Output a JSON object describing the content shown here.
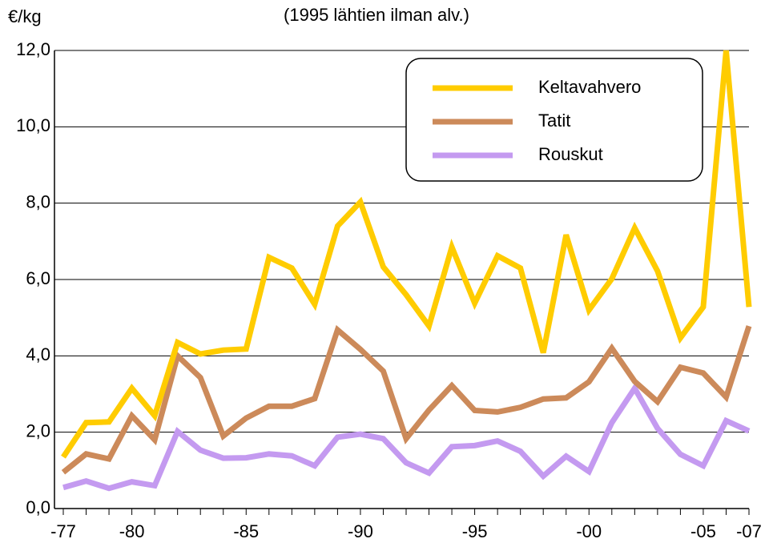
{
  "chart_data": {
    "type": "line",
    "subtitle": "(1995 lähtien ilman alv.)",
    "y_label": "€/kg",
    "categories": [
      "-77",
      null,
      null,
      "-80",
      null,
      null,
      null,
      null,
      "-85",
      null,
      null,
      null,
      null,
      "-90",
      null,
      null,
      null,
      null,
      "-95",
      null,
      null,
      null,
      null,
      "-00",
      null,
      null,
      null,
      null,
      "-05",
      null,
      "-07"
    ],
    "series": [
      {
        "name": "Keltavahvero",
        "color": "#ffcc00",
        "values": [
          1.35,
          2.25,
          2.27,
          3.15,
          2.43,
          4.35,
          4.05,
          4.15,
          4.18,
          6.58,
          6.3,
          5.35,
          7.4,
          8.03,
          6.33,
          5.6,
          4.78,
          6.85,
          5.38,
          6.62,
          6.3,
          4.08,
          7.17,
          5.2,
          6.02,
          7.35,
          6.22,
          4.47,
          5.28,
          12.0,
          5.28
        ]
      },
      {
        "name": "Tatit",
        "color": "#cc8a5a",
        "values": [
          0.95,
          1.43,
          1.3,
          2.43,
          1.8,
          4.0,
          3.43,
          1.9,
          2.37,
          2.68,
          2.68,
          2.88,
          4.68,
          4.17,
          3.6,
          1.83,
          2.58,
          3.22,
          2.57,
          2.53,
          2.65,
          2.87,
          2.9,
          3.32,
          4.2,
          3.33,
          2.8,
          3.7,
          3.55,
          2.92,
          4.78
        ]
      },
      {
        "name": "Rouskut",
        "color": "#c49af0",
        "values": [
          0.55,
          0.72,
          0.53,
          0.7,
          0.6,
          2.02,
          1.53,
          1.32,
          1.33,
          1.43,
          1.38,
          1.12,
          1.87,
          1.95,
          1.83,
          1.2,
          0.93,
          1.62,
          1.65,
          1.77,
          1.5,
          0.85,
          1.37,
          0.97,
          2.25,
          3.15,
          2.1,
          1.42,
          1.12,
          2.3,
          2.03
        ]
      }
    ],
    "ylim": [
      0,
      12
    ],
    "yticks": [
      {
        "value": 0,
        "label": "0,0"
      },
      {
        "value": 2,
        "label": "2,0"
      },
      {
        "value": 4,
        "label": "4,0"
      },
      {
        "value": 6,
        "label": "6,0"
      },
      {
        "value": 8,
        "label": "8,0"
      },
      {
        "value": 10,
        "label": "10,0"
      },
      {
        "value": 12,
        "label": "12,0"
      }
    ],
    "grid": true
  }
}
